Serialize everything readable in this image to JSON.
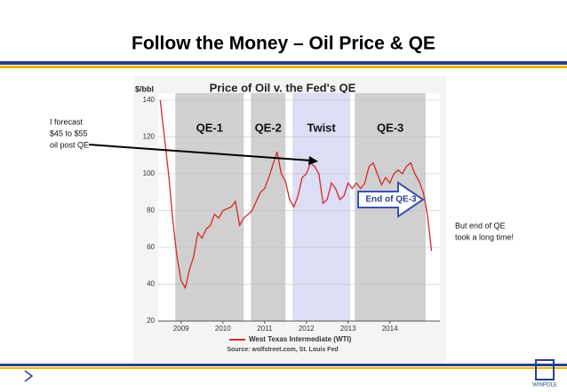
{
  "slide_title": "Follow the Money – Oil Price & QE",
  "logo": "WINPOLE",
  "chart_data": {
    "type": "line",
    "title": "Price of Oil v. the Fed's QE",
    "y_label": "$/bbl",
    "source": "Source: wolfstreet.com, St. Louis Fed",
    "xlim": [
      2008.45,
      2015.2
    ],
    "xticks": [
      2009,
      2010,
      2011,
      2012,
      2013,
      2014
    ],
    "ylim": [
      20,
      140
    ],
    "yticks": [
      20,
      40,
      60,
      80,
      100,
      120,
      140
    ],
    "grid": true,
    "x": [
      2008.5,
      2008.6,
      2008.7,
      2008.8,
      2008.9,
      2009.0,
      2009.1,
      2009.2,
      2009.3,
      2009.4,
      2009.5,
      2009.6,
      2009.7,
      2009.8,
      2009.9,
      2010.0,
      2010.2,
      2010.3,
      2010.4,
      2010.5,
      2010.6,
      2010.7,
      2010.8,
      2010.9,
      2011.0,
      2011.1,
      2011.2,
      2011.3,
      2011.4,
      2011.5,
      2011.6,
      2011.7,
      2011.8,
      2011.9,
      2012.0,
      2012.1,
      2012.2,
      2012.3,
      2012.4,
      2012.5,
      2012.6,
      2012.7,
      2012.8,
      2012.9,
      2013.0,
      2013.1,
      2013.2,
      2013.3,
      2013.4,
      2013.5,
      2013.6,
      2013.7,
      2013.8,
      2013.9,
      2014.0,
      2014.1,
      2014.2,
      2014.3,
      2014.4,
      2014.5,
      2014.6,
      2014.7,
      2014.8,
      2014.9,
      2015.0
    ],
    "series": [
      {
        "name": "West Texas Intermediate (WTI)",
        "color": "#d62828",
        "values": [
          140,
          120,
          100,
          75,
          55,
          42,
          38,
          48,
          55,
          68,
          65,
          70,
          72,
          78,
          76,
          80,
          82,
          85,
          72,
          76,
          78,
          80,
          85,
          90,
          92,
          98,
          105,
          112,
          100,
          96,
          86,
          82,
          88,
          98,
          100,
          106,
          104,
          100,
          84,
          86,
          95,
          92,
          86,
          88,
          95,
          92,
          95,
          92,
          95,
          104,
          106,
          100,
          94,
          98,
          95,
          100,
          102,
          100,
          104,
          106,
          100,
          96,
          90,
          78,
          58
        ]
      }
    ],
    "regions": [
      {
        "label": "QE-1",
        "start": 2008.86,
        "end": 2010.5,
        "color": "#c4c4c4"
      },
      {
        "label": "QE-2",
        "start": 2010.67,
        "end": 2011.5,
        "color": "#c4c4c4"
      },
      {
        "label": "Twist",
        "start": 2011.67,
        "end": 2013.05,
        "color": "#d4d4f2"
      },
      {
        "label": "QE-3",
        "start": 2013.16,
        "end": 2014.86,
        "color": "#c4c4c4"
      }
    ],
    "arrow_label": "End of QE-3",
    "annotations": [
      [
        "I forecast",
        "$45 to $55",
        "oil post QE"
      ],
      [
        "But end of QE",
        "took a long time!"
      ]
    ]
  }
}
